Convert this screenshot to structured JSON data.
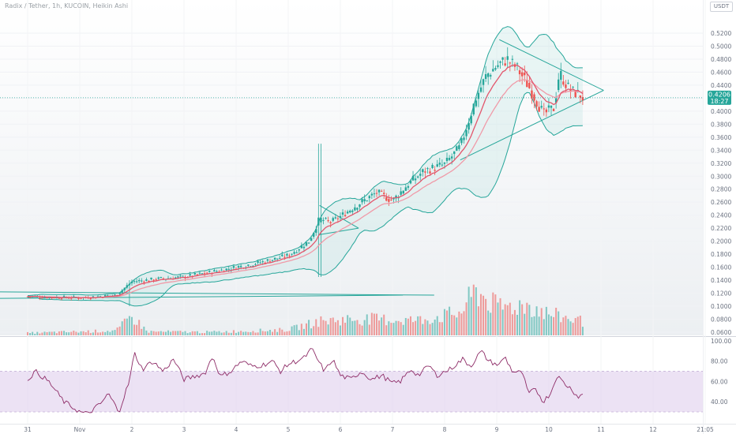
{
  "header": {
    "symbol_title": "Radix / Tether, 1h, KUCOIN, Heikin Ashi",
    "currency": "USDT"
  },
  "colors": {
    "up": "#26a69a",
    "down": "#ef5350",
    "ema": "#e3566c",
    "bands": "#26a69a",
    "rsi_line": "#8e2c67",
    "rsi_band": "#e5d8f0"
  },
  "chart_data": [
    {
      "type": "candlestick",
      "style": "Heikin Ashi",
      "title": "Radix / Tether, 1h, KUCOIN, Heikin Ashi",
      "currency": "USDT",
      "y_axis_ticks": [
        0.52,
        0.5,
        0.48,
        0.46,
        0.44,
        0.42,
        0.4,
        0.38,
        0.36,
        0.34,
        0.32,
        0.3,
        0.28,
        0.26,
        0.24,
        0.22,
        0.2,
        0.18,
        0.16,
        0.14,
        0.12,
        0.1,
        0.08,
        0.06
      ],
      "y_axis_tick_labels": [
        "0.5200",
        "0.5000",
        "0.4800",
        "0.4600",
        "0.4400",
        "0.4200",
        "0.4000",
        "0.3800",
        "0.3600",
        "0.3400",
        "0.3200",
        "0.3000",
        "0.2800",
        "0.2600",
        "0.2400",
        "0.2200",
        "0.2000",
        "0.1800",
        "0.1600",
        "0.1400",
        "0.1200",
        "0.1000",
        "0.0800",
        "0.0600"
      ],
      "ylim": [
        0.06,
        0.53
      ],
      "x_axis_tick_labels": [
        "31",
        "Nov",
        "2",
        "3",
        "4",
        "5",
        "6",
        "7",
        "8",
        "9",
        "10",
        "11",
        "12",
        "21:05"
      ],
      "last_price": "0.4206",
      "countdown": "18:27",
      "last_price_value": 0.4206,
      "price_path": [
        {
          "day": 0.0,
          "price": 0.115
        },
        {
          "day": 1.0,
          "price": 0.113
        },
        {
          "day": 1.7,
          "price": 0.117
        },
        {
          "day": 2.0,
          "price": 0.138
        },
        {
          "day": 2.5,
          "price": 0.142
        },
        {
          "day": 3.0,
          "price": 0.145
        },
        {
          "day": 3.5,
          "price": 0.152
        },
        {
          "day": 4.0,
          "price": 0.16
        },
        {
          "day": 4.5,
          "price": 0.168
        },
        {
          "day": 5.0,
          "price": 0.178
        },
        {
          "day": 5.4,
          "price": 0.2
        },
        {
          "day": 5.6,
          "price": 0.235
        },
        {
          "day": 5.8,
          "price": 0.228
        },
        {
          "day": 6.0,
          "price": 0.238
        },
        {
          "day": 6.3,
          "price": 0.255
        },
        {
          "day": 6.7,
          "price": 0.275
        },
        {
          "day": 7.0,
          "price": 0.262
        },
        {
          "day": 7.3,
          "price": 0.288
        },
        {
          "day": 7.6,
          "price": 0.308
        },
        {
          "day": 8.0,
          "price": 0.318
        },
        {
          "day": 8.3,
          "price": 0.345
        },
        {
          "day": 8.6,
          "price": 0.42
        },
        {
          "day": 8.8,
          "price": 0.455
        },
        {
          "day": 9.0,
          "price": 0.47
        },
        {
          "day": 9.2,
          "price": 0.48
        },
        {
          "day": 9.4,
          "price": 0.465
        },
        {
          "day": 9.6,
          "price": 0.44
        },
        {
          "day": 9.9,
          "price": 0.395
        },
        {
          "day": 10.1,
          "price": 0.405
        },
        {
          "day": 10.2,
          "price": 0.46
        },
        {
          "day": 10.4,
          "price": 0.432
        },
        {
          "day": 10.6,
          "price": 0.425
        },
        {
          "day": 10.65,
          "price": 0.421
        }
      ],
      "volume_path": [
        {
          "day": 0.0,
          "volume": 0.05
        },
        {
          "day": 1.7,
          "volume": 0.1
        },
        {
          "day": 2.0,
          "volume": 0.4
        },
        {
          "day": 2.3,
          "volume": 0.08
        },
        {
          "day": 3.5,
          "volume": 0.07
        },
        {
          "day": 5.0,
          "volume": 0.12
        },
        {
          "day": 5.6,
          "volume": 0.3
        },
        {
          "day": 6.3,
          "volume": 0.35
        },
        {
          "day": 7.5,
          "volume": 0.32
        },
        {
          "day": 8.3,
          "volume": 0.48
        },
        {
          "day": 8.6,
          "volume": 0.95
        },
        {
          "day": 9.0,
          "volume": 0.6
        },
        {
          "day": 9.6,
          "volume": 0.65
        },
        {
          "day": 10.0,
          "volume": 0.45
        },
        {
          "day": 10.65,
          "volume": 0.3
        }
      ]
    },
    {
      "type": "line",
      "indicator": "RSI",
      "y_axis_ticks": [
        100,
        80,
        60,
        40
      ],
      "y_axis_tick_labels": [
        "100.00",
        "80.00",
        "60.00",
        "40.00"
      ],
      "ylim": [
        20,
        100
      ],
      "overbought": 70,
      "oversold": 30,
      "values": [
        {
          "day": 0.0,
          "rsi": 62
        },
        {
          "day": 0.15,
          "rsi": 70
        },
        {
          "day": 0.4,
          "rsi": 60
        },
        {
          "day": 0.7,
          "rsi": 40
        },
        {
          "day": 1.0,
          "rsi": 30
        },
        {
          "day": 1.15,
          "rsi": 28
        },
        {
          "day": 1.4,
          "rsi": 38
        },
        {
          "day": 1.55,
          "rsi": 48
        },
        {
          "day": 1.75,
          "rsi": 30
        },
        {
          "day": 1.95,
          "rsi": 60
        },
        {
          "day": 2.05,
          "rsi": 88
        },
        {
          "day": 2.2,
          "rsi": 72
        },
        {
          "day": 2.4,
          "rsi": 80
        },
        {
          "day": 2.6,
          "rsi": 70
        },
        {
          "day": 2.8,
          "rsi": 82
        },
        {
          "day": 3.0,
          "rsi": 62
        },
        {
          "day": 3.2,
          "rsi": 65
        },
        {
          "day": 3.4,
          "rsi": 68
        },
        {
          "day": 3.55,
          "rsi": 85
        },
        {
          "day": 3.7,
          "rsi": 65
        },
        {
          "day": 3.9,
          "rsi": 70
        },
        {
          "day": 4.1,
          "rsi": 80
        },
        {
          "day": 4.3,
          "rsi": 75
        },
        {
          "day": 4.5,
          "rsi": 76
        },
        {
          "day": 4.7,
          "rsi": 80
        },
        {
          "day": 4.85,
          "rsi": 70
        },
        {
          "day": 5.0,
          "rsi": 77
        },
        {
          "day": 5.3,
          "rsi": 83
        },
        {
          "day": 5.45,
          "rsi": 92
        },
        {
          "day": 5.6,
          "rsi": 78
        },
        {
          "day": 5.7,
          "rsi": 70
        },
        {
          "day": 5.85,
          "rsi": 82
        },
        {
          "day": 6.0,
          "rsi": 66
        },
        {
          "day": 6.2,
          "rsi": 62
        },
        {
          "day": 6.4,
          "rsi": 70
        },
        {
          "day": 6.6,
          "rsi": 62
        },
        {
          "day": 6.8,
          "rsi": 66
        },
        {
          "day": 7.0,
          "rsi": 58
        },
        {
          "day": 7.15,
          "rsi": 60
        },
        {
          "day": 7.35,
          "rsi": 72
        },
        {
          "day": 7.5,
          "rsi": 66
        },
        {
          "day": 7.7,
          "rsi": 76
        },
        {
          "day": 7.85,
          "rsi": 66
        },
        {
          "day": 8.1,
          "rsi": 72
        },
        {
          "day": 8.35,
          "rsi": 82
        },
        {
          "day": 8.5,
          "rsi": 75
        },
        {
          "day": 8.7,
          "rsi": 90
        },
        {
          "day": 8.85,
          "rsi": 80
        },
        {
          "day": 9.05,
          "rsi": 76
        },
        {
          "day": 9.15,
          "rsi": 85
        },
        {
          "day": 9.3,
          "rsi": 70
        },
        {
          "day": 9.5,
          "rsi": 68
        },
        {
          "day": 9.6,
          "rsi": 48
        },
        {
          "day": 9.75,
          "rsi": 52
        },
        {
          "day": 9.9,
          "rsi": 40
        },
        {
          "day": 10.05,
          "rsi": 50
        },
        {
          "day": 10.15,
          "rsi": 66
        },
        {
          "day": 10.3,
          "rsi": 58
        },
        {
          "day": 10.45,
          "rsi": 52
        },
        {
          "day": 10.55,
          "rsi": 45
        },
        {
          "day": 10.65,
          "rsi": 47
        }
      ]
    }
  ]
}
